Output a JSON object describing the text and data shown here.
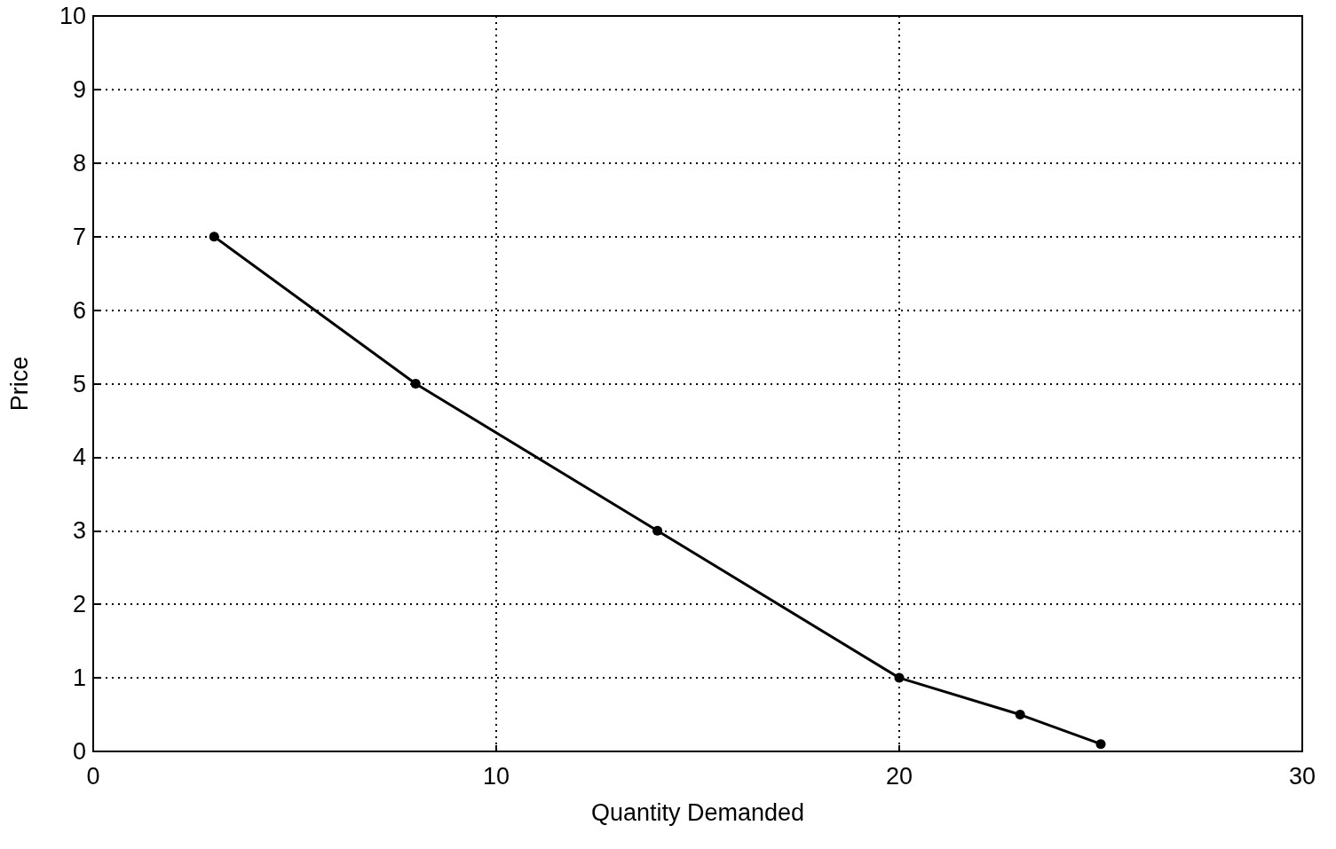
{
  "chart_data": {
    "type": "line",
    "xlabel": "Quantity Demanded",
    "ylabel": "Price",
    "x": [
      3,
      8,
      14,
      20,
      23,
      25
    ],
    "series": [
      {
        "color": "#000000",
        "values": [
          7,
          5,
          3,
          1,
          0.5,
          0.1
        ]
      }
    ],
    "xlim": [
      0,
      30
    ],
    "xticks": [
      0,
      10,
      20,
      30
    ],
    "ylim": [
      0,
      10
    ],
    "yticks": [
      0,
      1,
      2,
      3,
      4,
      5,
      6,
      7,
      8,
      9,
      10
    ],
    "grid": true,
    "marker": "circle",
    "line_style": "solid"
  }
}
